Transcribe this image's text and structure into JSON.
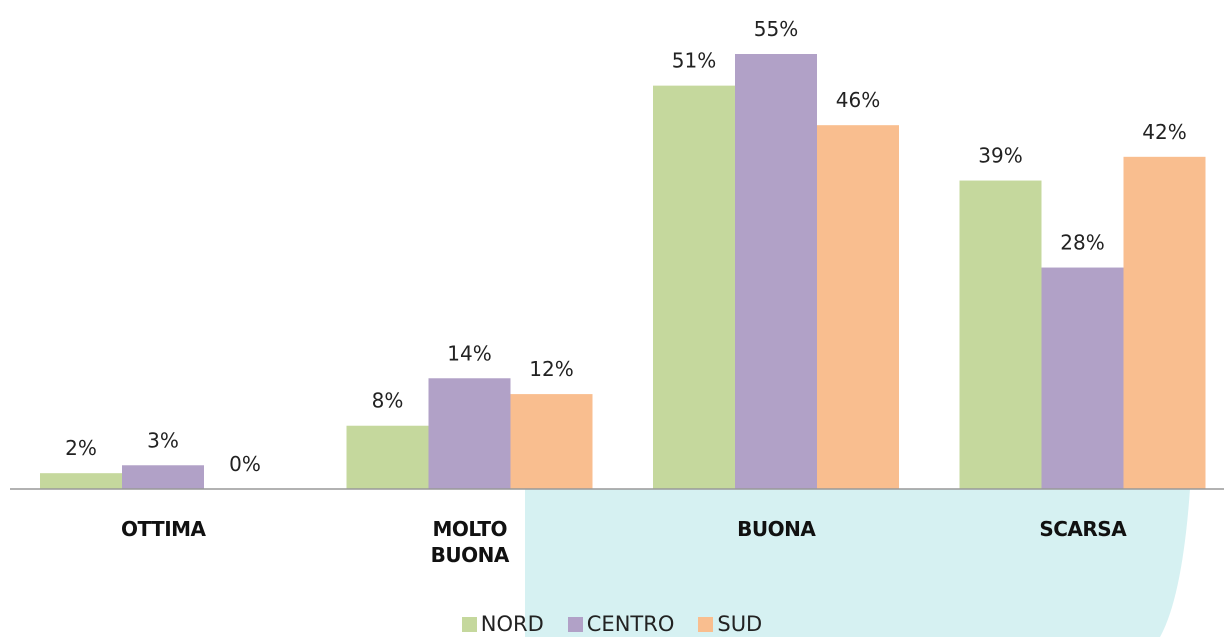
{
  "chart_data": {
    "type": "bar",
    "categories": [
      "OTTIMA",
      "MOLTO BUONA",
      "BUONA",
      "SCARSA"
    ],
    "series": [
      {
        "name": "NORD",
        "color": "#c5d89d",
        "values": [
          2,
          8,
          51,
          39
        ],
        "value_labels": [
          "2%",
          "8%",
          "51%",
          "39%"
        ]
      },
      {
        "name": "CENTRO",
        "color": "#b1a1c7",
        "values": [
          3,
          14,
          55,
          28
        ],
        "value_labels": [
          "3%",
          "14%",
          "55%",
          "28%"
        ]
      },
      {
        "name": "SUD",
        "color": "#f9be8f",
        "values": [
          0,
          12,
          46,
          42
        ],
        "value_labels": [
          "0%",
          "12%",
          "46%",
          "42%"
        ]
      }
    ]
  }
}
